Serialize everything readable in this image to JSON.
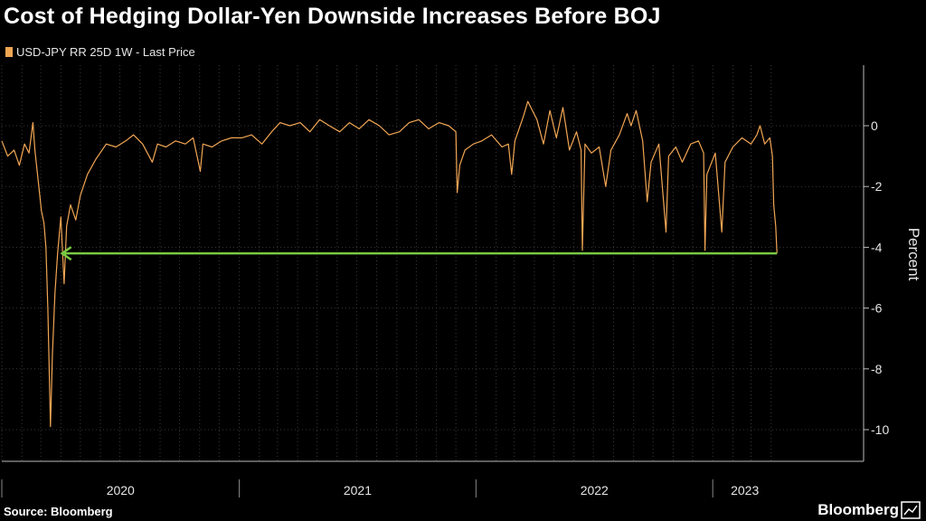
{
  "title": "Cost of Hedging Dollar-Yen Downside Increases Before BOJ",
  "legend": {
    "label": "USD-JPY RR 25D 1W - Last Price",
    "color": "#f2a654"
  },
  "source": "Source: Bloomberg",
  "brand": "Bloomberg",
  "colors": {
    "background": "#000000",
    "series": "#f2a654",
    "annotation_arrow": "#7ac943",
    "grid": "#3a3a3a"
  },
  "chart_data": {
    "type": "line",
    "ylabel": "Percent",
    "ylim": [
      -10.5,
      1.8
    ],
    "yticks": [
      0,
      -2,
      -4,
      -6,
      -8,
      -10
    ],
    "ytick_labels": [
      "0",
      "-2",
      "-4",
      "-6",
      "-8",
      "-10"
    ],
    "x_range": [
      "2020-01-01",
      "2023-04-10"
    ],
    "xtick_labels": [
      "2020",
      "2021",
      "2022",
      "2023"
    ],
    "grid": true,
    "series": [
      {
        "name": "USD-JPY RR 25D 1W - Last Price",
        "points": [
          [
            "2020-01-01",
            -0.5
          ],
          [
            "2020-01-10",
            -1.0
          ],
          [
            "2020-01-20",
            -0.8
          ],
          [
            "2020-01-28",
            -1.3
          ],
          [
            "2020-02-05",
            -0.6
          ],
          [
            "2020-02-12",
            -0.9
          ],
          [
            "2020-02-18",
            0.1
          ],
          [
            "2020-02-21",
            -0.8
          ],
          [
            "2020-02-26",
            -1.8
          ],
          [
            "2020-03-02",
            -2.8
          ],
          [
            "2020-03-06",
            -3.2
          ],
          [
            "2020-03-09",
            -4.0
          ],
          [
            "2020-03-12",
            -6.0
          ],
          [
            "2020-03-16",
            -9.9
          ],
          [
            "2020-03-19",
            -7.5
          ],
          [
            "2020-03-23",
            -5.5
          ],
          [
            "2020-03-27",
            -4.2
          ],
          [
            "2020-04-01",
            -3.0
          ],
          [
            "2020-04-06",
            -5.2
          ],
          [
            "2020-04-10",
            -3.3
          ],
          [
            "2020-04-16",
            -2.6
          ],
          [
            "2020-04-24",
            -3.1
          ],
          [
            "2020-05-01",
            -2.3
          ],
          [
            "2020-05-12",
            -1.6
          ],
          [
            "2020-05-25",
            -1.1
          ],
          [
            "2020-06-10",
            -0.6
          ],
          [
            "2020-06-25",
            -0.7
          ],
          [
            "2020-07-10",
            -0.5
          ],
          [
            "2020-07-22",
            -0.3
          ],
          [
            "2020-08-05",
            -0.6
          ],
          [
            "2020-08-20",
            -1.2
          ],
          [
            "2020-08-28",
            -0.6
          ],
          [
            "2020-09-10",
            -0.7
          ],
          [
            "2020-09-25",
            -0.5
          ],
          [
            "2020-10-10",
            -0.6
          ],
          [
            "2020-10-22",
            -0.4
          ],
          [
            "2020-11-02",
            -1.5
          ],
          [
            "2020-11-06",
            -0.6
          ],
          [
            "2020-11-20",
            -0.7
          ],
          [
            "2020-12-05",
            -0.5
          ],
          [
            "2020-12-20",
            -0.4
          ],
          [
            "2021-01-05",
            -0.4
          ],
          [
            "2021-01-20",
            -0.3
          ],
          [
            "2021-02-05",
            -0.6
          ],
          [
            "2021-02-20",
            -0.2
          ],
          [
            "2021-03-05",
            0.1
          ],
          [
            "2021-03-20",
            0.0
          ],
          [
            "2021-04-05",
            0.1
          ],
          [
            "2021-04-20",
            -0.2
          ],
          [
            "2021-05-05",
            0.2
          ],
          [
            "2021-05-20",
            0.0
          ],
          [
            "2021-06-05",
            -0.2
          ],
          [
            "2021-06-20",
            0.1
          ],
          [
            "2021-07-05",
            -0.1
          ],
          [
            "2021-07-20",
            0.2
          ],
          [
            "2021-08-05",
            0.0
          ],
          [
            "2021-08-20",
            -0.3
          ],
          [
            "2021-09-05",
            -0.2
          ],
          [
            "2021-09-20",
            0.1
          ],
          [
            "2021-10-05",
            0.2
          ],
          [
            "2021-10-20",
            -0.1
          ],
          [
            "2021-11-05",
            0.1
          ],
          [
            "2021-11-20",
            0.0
          ],
          [
            "2021-12-01",
            -0.2
          ],
          [
            "2021-12-03",
            -2.2
          ],
          [
            "2021-12-07",
            -1.3
          ],
          [
            "2021-12-15",
            -0.8
          ],
          [
            "2021-12-28",
            -0.6
          ],
          [
            "2022-01-10",
            -0.5
          ],
          [
            "2022-01-25",
            -0.3
          ],
          [
            "2022-02-10",
            -0.7
          ],
          [
            "2022-02-20",
            -0.6
          ],
          [
            "2022-02-25",
            -1.6
          ],
          [
            "2022-03-02",
            -0.5
          ],
          [
            "2022-03-15",
            0.3
          ],
          [
            "2022-03-22",
            0.8
          ],
          [
            "2022-04-05",
            0.2
          ],
          [
            "2022-04-15",
            -0.6
          ],
          [
            "2022-04-25",
            0.5
          ],
          [
            "2022-05-05",
            -0.4
          ],
          [
            "2022-05-15",
            0.6
          ],
          [
            "2022-05-25",
            -0.8
          ],
          [
            "2022-06-05",
            -0.2
          ],
          [
            "2022-06-12",
            -0.8
          ],
          [
            "2022-06-14",
            -4.1
          ],
          [
            "2022-06-18",
            -0.6
          ],
          [
            "2022-06-28",
            -0.9
          ],
          [
            "2022-07-10",
            -0.7
          ],
          [
            "2022-07-20",
            -2.0
          ],
          [
            "2022-07-28",
            -0.8
          ],
          [
            "2022-08-10",
            -0.3
          ],
          [
            "2022-08-22",
            0.4
          ],
          [
            "2022-08-28",
            0.0
          ],
          [
            "2022-09-05",
            0.5
          ],
          [
            "2022-09-15",
            -0.5
          ],
          [
            "2022-09-22",
            -2.5
          ],
          [
            "2022-09-28",
            -1.2
          ],
          [
            "2022-10-10",
            -0.6
          ],
          [
            "2022-10-21",
            -3.5
          ],
          [
            "2022-10-25",
            -1.0
          ],
          [
            "2022-11-05",
            -0.7
          ],
          [
            "2022-11-15",
            -1.2
          ],
          [
            "2022-11-28",
            -0.6
          ],
          [
            "2022-12-10",
            -0.5
          ],
          [
            "2022-12-18",
            -0.9
          ],
          [
            "2022-12-20",
            -4.1
          ],
          [
            "2022-12-23",
            -1.6
          ],
          [
            "2023-01-05",
            -0.9
          ],
          [
            "2023-01-15",
            -3.5
          ],
          [
            "2023-01-20",
            -1.2
          ],
          [
            "2023-02-01",
            -0.7
          ],
          [
            "2023-02-15",
            -0.4
          ],
          [
            "2023-03-01",
            -0.6
          ],
          [
            "2023-03-10",
            -0.3
          ],
          [
            "2023-03-15",
            0.0
          ],
          [
            "2023-03-22",
            -0.6
          ],
          [
            "2023-03-30",
            -0.4
          ],
          [
            "2023-04-03",
            -1.0
          ],
          [
            "2023-04-05",
            -2.6
          ],
          [
            "2023-04-08",
            -3.3
          ],
          [
            "2023-04-10",
            -4.2
          ]
        ]
      }
    ],
    "annotation": {
      "type": "arrow",
      "y": -4.2,
      "from": "2023-04-10",
      "to": "2020-04-03"
    }
  }
}
